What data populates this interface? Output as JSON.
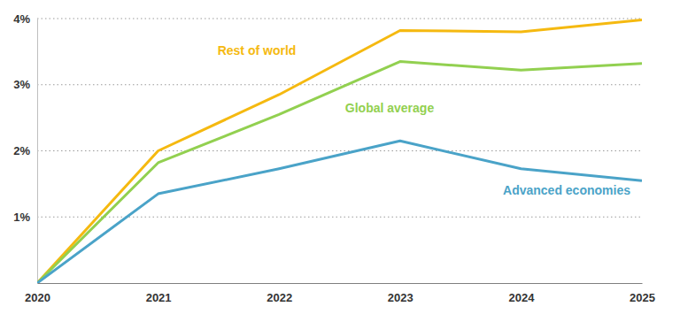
{
  "chart_data": {
    "type": "line",
    "x": [
      2020,
      2021,
      2022,
      2023,
      2024,
      2025
    ],
    "xlim": [
      2020,
      2025
    ],
    "xticks": [
      2020,
      2021,
      2022,
      2023,
      2024,
      2025
    ],
    "ylim": [
      0,
      4
    ],
    "yticks": [
      {
        "value": 1,
        "label": "1%"
      },
      {
        "value": 2,
        "label": "2%"
      },
      {
        "value": 3,
        "label": "3%"
      },
      {
        "value": 4,
        "label": "4%"
      }
    ],
    "grid": true,
    "series": [
      {
        "name": "Rest of world",
        "color": "#f5b910",
        "values": [
          0,
          2.0,
          2.85,
          3.82,
          3.8,
          3.98
        ]
      },
      {
        "name": "Global average",
        "color": "#92d050",
        "values": [
          0,
          1.82,
          2.55,
          3.35,
          3.22,
          3.32
        ]
      },
      {
        "name": "Advanced economies",
        "color": "#4aa3c8",
        "values": [
          0,
          1.35,
          1.73,
          2.15,
          1.73,
          1.55
        ]
      }
    ]
  }
}
